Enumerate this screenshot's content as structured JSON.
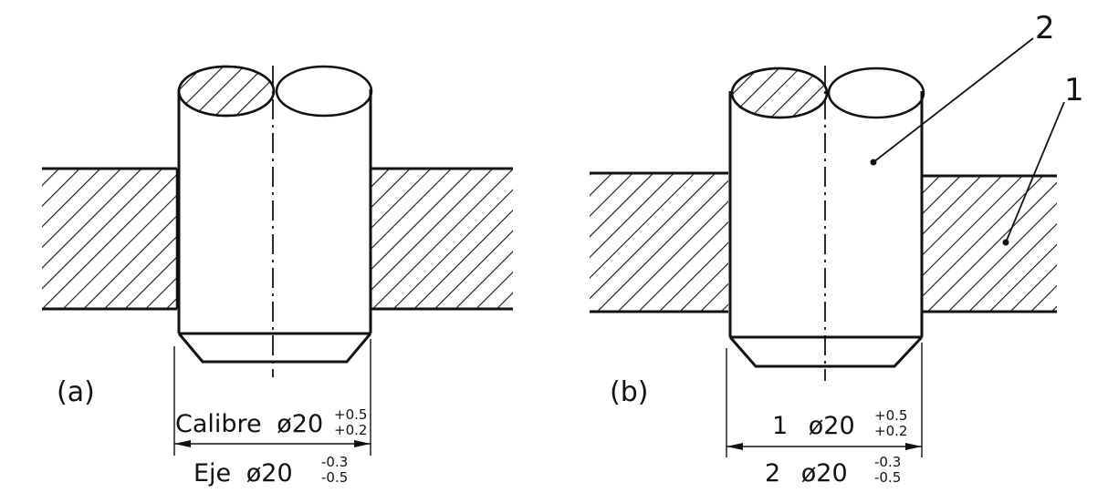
{
  "figures": [
    {
      "label": "(a)",
      "dim_hole": {
        "name": "Calibre",
        "sym": "ø20",
        "upper": "+0.5",
        "lower": "+0.2"
      },
      "dim_shaft": {
        "name": "Eje",
        "sym": "ø20",
        "upper": "-0.3",
        "lower": "-0.5"
      }
    },
    {
      "label": "(b)",
      "dim_hole": {
        "name": "1",
        "sym": "ø20",
        "upper": "+0.5",
        "lower": "+0.2"
      },
      "dim_shaft": {
        "name": "2",
        "sym": "ø20",
        "upper": "-0.3",
        "lower": "-0.5"
      },
      "callouts": [
        "2",
        "1"
      ]
    }
  ],
  "colors": {
    "ink": "#111111",
    "background": "#ffffff"
  }
}
